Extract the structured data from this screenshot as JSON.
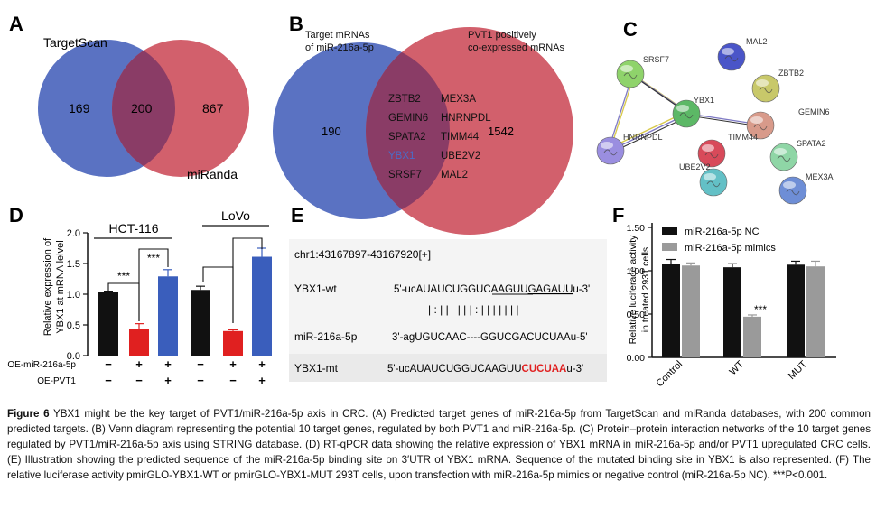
{
  "panelA": {
    "letter": "A",
    "label_left": "TargetScan",
    "label_right": "miRanda",
    "count_left": "169",
    "count_overlap": "200",
    "count_right": "867",
    "color_left": "#5a72c2",
    "color_right": "#d2606c",
    "color_overlap": "#8a3c66"
  },
  "panelB": {
    "letter": "B",
    "label_left_1": "Target mRNAs",
    "label_left_2": "of miR-216a-5p",
    "label_right_1": "PVT1 positively",
    "label_right_2": "co-expressed mRNAs",
    "count_left": "190",
    "count_right": "1542",
    "genes_col1": [
      "ZBTB2",
      "GEMIN6",
      "SPATA2",
      "YBX1",
      "SRSF7"
    ],
    "genes_col2": [
      "MEX3A",
      "HNRNPDL",
      "TIMM44",
      "UBE2V2",
      "MAL2"
    ],
    "highlight_gene": "YBX1",
    "highlight_color": "#4a6cc8"
  },
  "panelC": {
    "letter": "C",
    "nodes": [
      "SRSF7",
      "MAL2",
      "ZBTB2",
      "YBX1",
      "GEMIN6",
      "HNRNPDL",
      "TIMM44",
      "SPATA2",
      "UBE2V2",
      "MEX3A"
    ]
  },
  "panelD": {
    "letter": "D",
    "group1": "HCT-116",
    "group2": "LoVo",
    "ylabel_1": "Relative expression of",
    "ylabel_2": "YBX1 at mRNA lelvel",
    "yticks": [
      "0.0",
      "0.5",
      "1.0",
      "1.5",
      "2.0"
    ],
    "sig": [
      "***",
      "***"
    ],
    "row1_label": "OE-miR-216a-5p",
    "row2_label": "OE-PVT1",
    "row1_marks": [
      "−",
      "+",
      "+",
      "−",
      "+",
      "+"
    ],
    "row2_marks": [
      "−",
      "−",
      "+",
      "−",
      "−",
      "+"
    ]
  },
  "panelE": {
    "letter": "E",
    "coord": "chr1:43167897-43167920[+]",
    "wt_label": "YBX1-wt",
    "wt_seq_a": "5'-ucAUAUCUGGUCAAGUU",
    "wt_seq_b": "GAGAUU",
    "wt_seq_c": "u-3'",
    "pairing": "| : | |   | | | : | | | | | | |",
    "mir_label": "miR-216a-5p",
    "mir_seq": "3'-agUGUCAAC----GGUCGACUCUAAu-5'",
    "mt_label": "YBX1-mt",
    "mt_seq_a": "5'-ucAUAUCUGGUCAAGUU",
    "mt_seq_b": "CUCUAA",
    "mt_seq_c": "u-3'",
    "mut_color": "#e02020"
  },
  "panelF": {
    "letter": "F",
    "ylabel_1": "Relative luciferace activity",
    "ylabel_2": "in treated 293T cells",
    "yticks": [
      "0.00",
      "0.50",
      "1.00",
      "1.50"
    ],
    "legend_nc": "miR-216a-5p NC",
    "legend_mimics": "miR-216a-5p mimics",
    "categories": [
      "Control",
      "WT",
      "MUT"
    ],
    "sig": "***"
  },
  "chart_data": [
    {
      "type": "bar",
      "categories": [
        "HCT-116 NC",
        "HCT-116 OE-miR-216a-5p",
        "HCT-116 OE-miR-216a-5p + OE-PVT1",
        "LoVo NC",
        "LoVo OE-miR-216a-5p",
        "LoVo OE-miR-216a-5p + OE-PVT1"
      ],
      "values": [
        1.03,
        0.43,
        1.29,
        1.07,
        0.4,
        1.61
      ],
      "errors": [
        0.02,
        0.09,
        0.11,
        0.06,
        0.02,
        0.14
      ],
      "colors": [
        "#111111",
        "#e02020",
        "#3a5ebc",
        "#111111",
        "#e02020",
        "#3a5ebc"
      ],
      "ylabel": "Relative expression of YBX1 at mRNA lelvel",
      "ylim": [
        0,
        2
      ],
      "legend": "none"
    },
    {
      "type": "bar",
      "categories": [
        "Control",
        "WT",
        "MUT"
      ],
      "series": [
        {
          "name": "miR-216a-5p NC",
          "values": [
            1.08,
            1.04,
            1.07
          ],
          "errors": [
            0.05,
            0.04,
            0.04
          ],
          "color": "#111111"
        },
        {
          "name": "miR-216a-5p mimics",
          "values": [
            1.06,
            0.47,
            1.05
          ],
          "errors": [
            0.03,
            0.02,
            0.06
          ],
          "color": "#9a9a9a"
        }
      ],
      "ylabel": "Relative luciferace activity in treated 293T cells",
      "ylim": [
        0,
        1.5
      ],
      "legend": "top"
    }
  ],
  "caption": {
    "fig": "Figure 6",
    "text": " YBX1 might be the key target of PVT1/miR-216a-5p axis in CRC. (A) Predicted target genes of miR-216a-5p from TargetScan and miRanda databases, with 200 common predicted targets. (B) Venn diagram representing the potential 10 target genes, regulated by both PVT1 and miR-216a-5p. (C) Protein–protein interaction networks of the 10 target genes regulated by PVT1/miR-216a-5p axis using STRING database. (D) RT-qPCR data showing the relative expression of YBX1 mRNA in miR-216a-5p and/or PVT1 upregulated CRC cells. (E) Illustration showing the predicted sequence of the miR-216a-5p binding site on 3′UTR of YBX1 mRNA. Sequence of the mutated binding site in YBX1 is also represented. (F) The relative luciferase activity pmirGLO-YBX1-WT or pmirGLO-YBX1-MUT 293T cells, upon transfection with miR-216a-5p mimics or negative control (miR-216a-5p NC). ***P<0.001."
  }
}
